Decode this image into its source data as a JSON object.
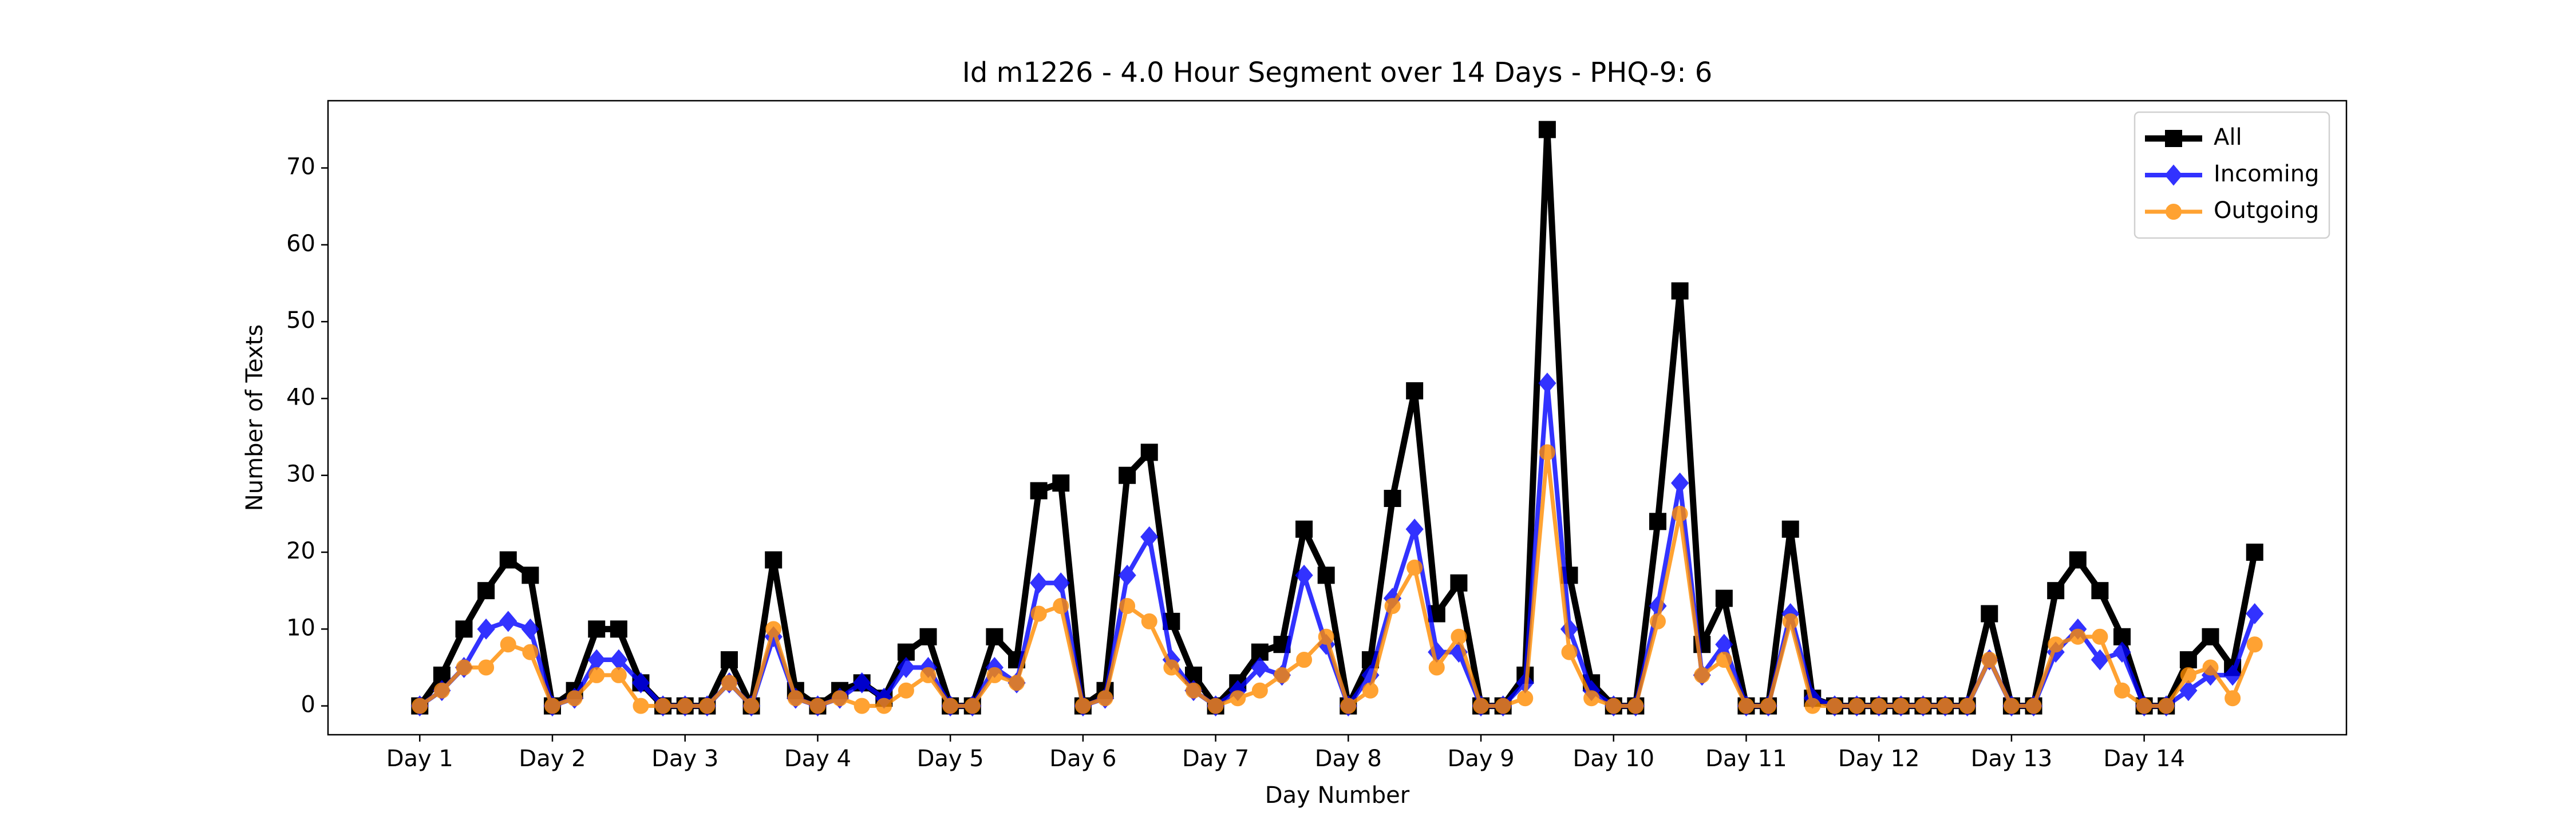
{
  "chart_data": {
    "type": "line",
    "title": "Id m1226 - 4.0 Hour Segment over 14 Days - PHQ-9: 6",
    "xlabel": "Day Number",
    "ylabel": "Number of Texts",
    "x": [
      0,
      1,
      2,
      3,
      4,
      5,
      6,
      7,
      8,
      9,
      10,
      11,
      12,
      13,
      14,
      15,
      16,
      17,
      18,
      19,
      20,
      21,
      22,
      23,
      24,
      25,
      26,
      27,
      28,
      29,
      30,
      31,
      32,
      33,
      34,
      35,
      36,
      37,
      38,
      39,
      40,
      41,
      42,
      43,
      44,
      45,
      46,
      47,
      48,
      49,
      50,
      51,
      52,
      53,
      54,
      55,
      56,
      57,
      58,
      59,
      60,
      61,
      62,
      63,
      64,
      65,
      66,
      67,
      68,
      69,
      70,
      71,
      72,
      73,
      74,
      75,
      76,
      77,
      78,
      79,
      80,
      81,
      82,
      83
    ],
    "series": [
      {
        "name": "All",
        "color": "#000000",
        "marker": "square",
        "values": [
          0,
          4,
          10,
          15,
          19,
          17,
          0,
          2,
          10,
          10,
          3,
          0,
          0,
          0,
          6,
          0,
          19,
          2,
          0,
          2,
          3,
          1,
          7,
          9,
          0,
          0,
          9,
          6,
          28,
          29,
          0,
          2,
          30,
          33,
          11,
          4,
          0,
          3,
          7,
          8,
          23,
          17,
          0,
          6,
          27,
          41,
          12,
          16,
          0,
          0,
          4,
          75,
          17,
          3,
          0,
          0,
          24,
          54,
          8,
          14,
          0,
          0,
          23,
          1,
          0,
          0,
          0,
          0,
          0,
          0,
          0,
          12,
          0,
          0,
          15,
          19,
          15,
          9,
          0,
          0,
          6,
          9,
          5,
          20
        ]
      },
      {
        "name": "Incoming",
        "color": "#0000ff",
        "marker": "diamond",
        "values": [
          0,
          2,
          5,
          10,
          11,
          10,
          0,
          1,
          6,
          6,
          3,
          0,
          0,
          0,
          3,
          0,
          9,
          1,
          0,
          1,
          3,
          1,
          5,
          5,
          0,
          0,
          5,
          3,
          16,
          16,
          0,
          1,
          17,
          22,
          6,
          2,
          0,
          2,
          5,
          4,
          17,
          8,
          0,
          4,
          14,
          23,
          7,
          7,
          0,
          0,
          3,
          42,
          10,
          2,
          0,
          0,
          13,
          29,
          4,
          8,
          0,
          0,
          12,
          1,
          0,
          0,
          0,
          0,
          0,
          0,
          0,
          6,
          0,
          0,
          7,
          10,
          6,
          7,
          0,
          0,
          2,
          4,
          4,
          12
        ]
      },
      {
        "name": "Outgoing",
        "color": "#ff8c00",
        "marker": "circle",
        "values": [
          0,
          2,
          5,
          5,
          8,
          7,
          0,
          1,
          4,
          4,
          0,
          0,
          0,
          0,
          3,
          0,
          10,
          1,
          0,
          1,
          0,
          0,
          2,
          4,
          0,
          0,
          4,
          3,
          12,
          13,
          0,
          1,
          13,
          11,
          5,
          2,
          0,
          1,
          2,
          4,
          6,
          9,
          0,
          2,
          13,
          18,
          5,
          9,
          0,
          0,
          1,
          33,
          7,
          1,
          0,
          0,
          11,
          25,
          4,
          6,
          0,
          0,
          11,
          0,
          0,
          0,
          0,
          0,
          0,
          0,
          0,
          6,
          0,
          0,
          8,
          9,
          9,
          2,
          0,
          0,
          4,
          5,
          1,
          8
        ]
      }
    ],
    "xlim": [
      -4.15,
      87.15
    ],
    "xticks": [
      {
        "value": 0,
        "label": "Day 1"
      },
      {
        "value": 6,
        "label": "Day 2"
      },
      {
        "value": 12,
        "label": "Day 3"
      },
      {
        "value": 18,
        "label": "Day 4"
      },
      {
        "value": 24,
        "label": "Day 5"
      },
      {
        "value": 30,
        "label": "Day 6"
      },
      {
        "value": 36,
        "label": "Day 7"
      },
      {
        "value": 42,
        "label": "Day 8"
      },
      {
        "value": 48,
        "label": "Day 9"
      },
      {
        "value": 54,
        "label": "Day 10"
      },
      {
        "value": 60,
        "label": "Day 11"
      },
      {
        "value": 66,
        "label": "Day 12"
      },
      {
        "value": 72,
        "label": "Day 13"
      },
      {
        "value": 78,
        "label": "Day 14"
      }
    ],
    "ylim": [
      -3.75,
      78.75
    ],
    "yticks": [
      0,
      10,
      20,
      30,
      40,
      50,
      60,
      70
    ],
    "grid": false,
    "legend": "upper right"
  }
}
